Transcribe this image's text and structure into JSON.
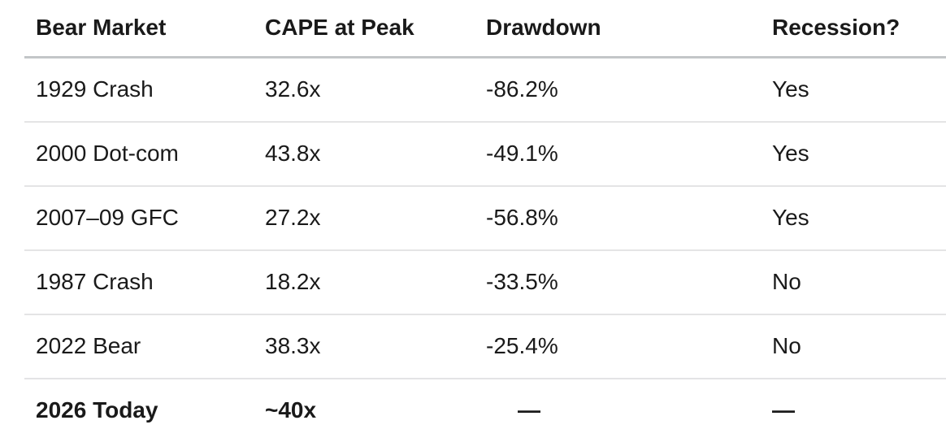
{
  "chart_data": {
    "type": "table",
    "columns": [
      "Bear Market",
      "CAPE at Peak",
      "Drawdown",
      "Recession?"
    ],
    "rows": [
      [
        "1929 Crash",
        "32.6x",
        "-86.2%",
        "Yes"
      ],
      [
        "2000 Dot-com",
        "43.8x",
        "-49.1%",
        "Yes"
      ],
      [
        "2007–09 GFC",
        "27.2x",
        "-56.8%",
        "Yes"
      ],
      [
        "1987 Crash",
        "18.2x",
        "-33.5%",
        "No"
      ],
      [
        "2022 Bear",
        "38.3x",
        "-25.4%",
        "No"
      ],
      [
        "2026 Today",
        "~40x",
        "—",
        "—"
      ]
    ],
    "numeric": {
      "cape_at_peak": [
        32.6,
        43.8,
        27.2,
        18.2,
        38.3,
        40
      ],
      "cape_at_peak_note_last": "approximate (~40x)",
      "drawdown_pct": [
        -86.2,
        -49.1,
        -56.8,
        -33.5,
        -25.4,
        null
      ],
      "recession": [
        true,
        true,
        true,
        false,
        false,
        null
      ]
    },
    "layout": {
      "header_bold": true,
      "last_row_bold": true,
      "grid": "horizontal-rules-only"
    }
  },
  "colors": {
    "background": "#ffffff",
    "text": "#1a1a1a",
    "header_rule": "#c3c6c8",
    "row_rule": "#e4e4e5"
  }
}
